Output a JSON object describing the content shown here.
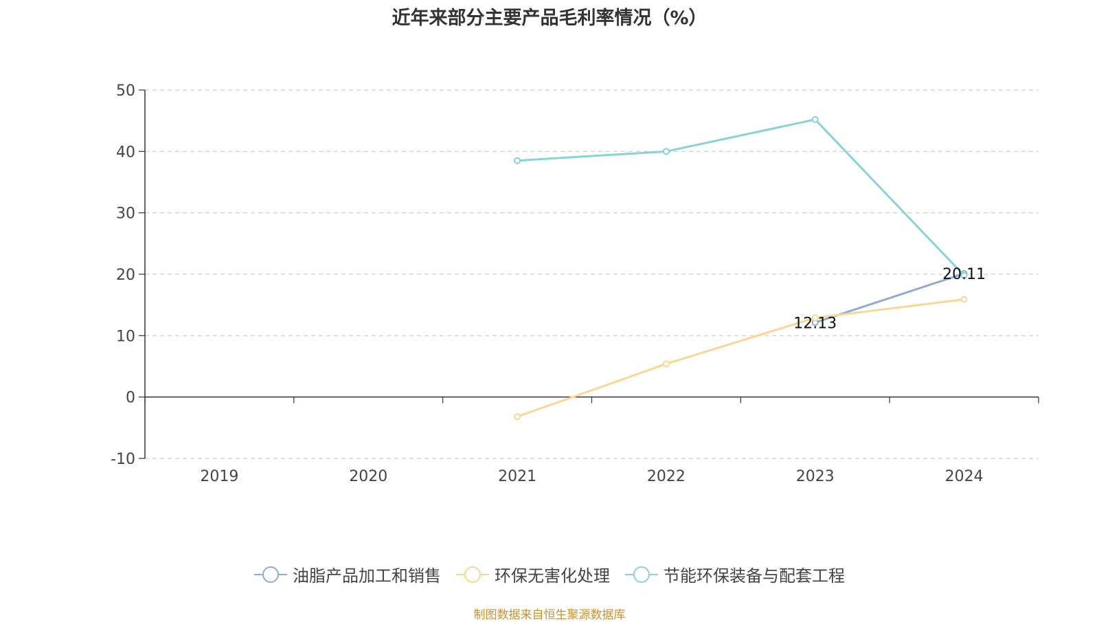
{
  "chart_data": {
    "type": "line",
    "title": "近年来部分主要产品毛利率情况（%）",
    "categories": [
      "2019",
      "2020",
      "2021",
      "2022",
      "2023",
      "2024"
    ],
    "ylim": [
      -10,
      50
    ],
    "yticks": [
      -10,
      0,
      10,
      20,
      30,
      40,
      50
    ],
    "grid": true,
    "legend_position": "bottom",
    "series": [
      {
        "name": "油脂产品加工和销售",
        "color": "#8fa9d6",
        "values": [
          null,
          null,
          null,
          null,
          12.13,
          20.11
        ],
        "labels": [
          null,
          null,
          null,
          null,
          "12.13",
          "20.11"
        ]
      },
      {
        "name": "环保无害化处理",
        "color": "#f9d794",
        "values": [
          null,
          null,
          -3.2,
          5.4,
          12.9,
          15.9
        ],
        "labels": [
          null,
          null,
          null,
          null,
          null,
          null
        ]
      },
      {
        "name": "节能环保装备与配套工程",
        "color": "#86d3d8",
        "values": [
          null,
          null,
          38.5,
          40.0,
          45.2,
          19.8
        ],
        "labels": [
          null,
          null,
          null,
          null,
          null,
          null
        ]
      }
    ]
  },
  "source_note": "制图数据来自恒生聚源数据库"
}
